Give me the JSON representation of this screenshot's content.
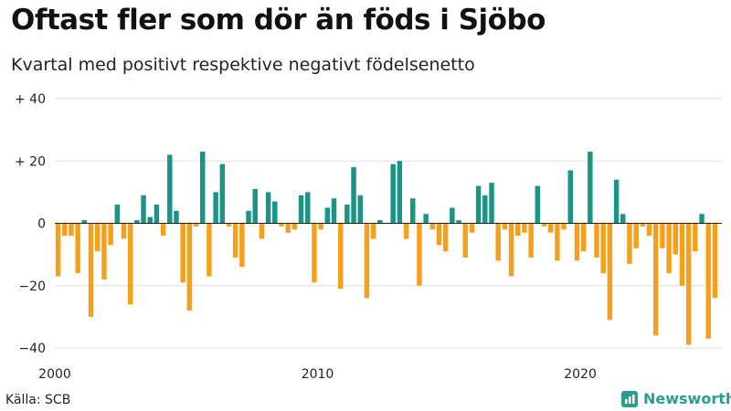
{
  "colors": {
    "positive": "#1a9484",
    "negative": "#f6a01a",
    "grid": "#dddddd",
    "brand": "#2a9d8f"
  },
  "chart_data": {
    "type": "bar",
    "title": "Oftast fler som dör än föds i Sjöbo",
    "subtitle": "Kvartal med positivt respektive negativt födelsenetto",
    "xlabel": "",
    "ylabel": "",
    "x_ticks": [
      {
        "value": 2000,
        "label": "2000"
      },
      {
        "value": 2010,
        "label": "2010"
      },
      {
        "value": 2020,
        "label": "2020"
      }
    ],
    "y_ticks": [
      {
        "value": 40,
        "label": "+ 40"
      },
      {
        "value": 20,
        "label": "+ 20"
      },
      {
        "value": 0,
        "label": "0"
      },
      {
        "value": -20,
        "label": "−20"
      },
      {
        "value": -40,
        "label": "−40"
      }
    ],
    "ylim": [
      -40,
      40
    ],
    "x_start": "2000 Q1",
    "grid": true,
    "values": [
      -17,
      -4,
      -4,
      -16,
      1,
      -30,
      -9,
      -18,
      -7,
      6,
      -5,
      -26,
      1,
      9,
      2,
      6,
      -4,
      22,
      4,
      -19,
      -28,
      -1,
      23,
      -17,
      10,
      19,
      -1,
      -11,
      -14,
      4,
      11,
      -5,
      10,
      7,
      -1,
      -3,
      -2,
      9,
      10,
      -19,
      -2,
      5,
      8,
      -21,
      6,
      18,
      9,
      -24,
      -5,
      1,
      0,
      19,
      20,
      -5,
      8,
      -20,
      3,
      -2,
      -7,
      -9,
      5,
      1,
      -11,
      -3,
      12,
      9,
      13,
      -12,
      -2,
      -17,
      -4,
      -3,
      -11,
      12,
      -1,
      -3,
      -12,
      -2,
      17,
      -12,
      -9,
      23,
      -11,
      -16,
      -31,
      14,
      3,
      -13,
      -8,
      -1,
      -4,
      -36,
      -8,
      -16,
      -10,
      -20,
      -39,
      -9,
      3,
      -37,
      -24
    ]
  },
  "footer": {
    "source": "Källa: SCB",
    "brand": "Newsworthy",
    "logo_icon": "bar-chart-logo-icon"
  }
}
